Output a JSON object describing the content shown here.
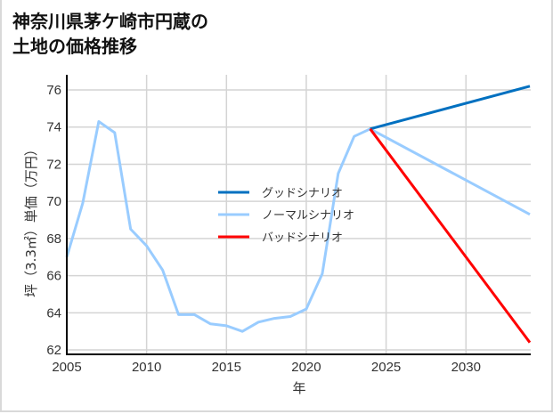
{
  "title_lines": [
    "神奈川県茅ケ崎市円蔵の",
    "土地の価格推移"
  ],
  "chart_data": {
    "type": "line",
    "title": "神奈川県茅ケ崎市円蔵の土地の価格推移",
    "xlabel": "年",
    "ylabel": "坪（3.3㎡）単価（万円）",
    "xlim": [
      2005,
      2034
    ],
    "ylim": [
      61.7,
      76.8
    ],
    "x_ticks": [
      2005,
      2010,
      2015,
      2020,
      2025,
      2030
    ],
    "y_ticks": [
      62,
      64,
      66,
      68,
      70,
      72,
      74,
      76
    ],
    "grid": true,
    "legend_position": "center",
    "series": [
      {
        "name": "ノーマルシナリオ",
        "color": "#99ccff",
        "x": [
          2005,
          2006,
          2007,
          2008,
          2009,
          2010,
          2011,
          2012,
          2013,
          2014,
          2015,
          2016,
          2017,
          2018,
          2019,
          2020,
          2021,
          2022,
          2023,
          2024,
          2034
        ],
        "values": [
          67.0,
          69.9,
          74.3,
          73.7,
          68.5,
          67.6,
          66.3,
          63.9,
          63.9,
          63.4,
          63.3,
          63.0,
          63.5,
          63.7,
          63.8,
          64.2,
          66.1,
          71.5,
          73.5,
          73.9,
          69.3
        ]
      },
      {
        "name": "グッドシナリオ",
        "color": "#0070c0",
        "x": [
          2024,
          2034
        ],
        "values": [
          73.9,
          76.2
        ]
      },
      {
        "name": "バッドシナリオ",
        "color": "#ff0000",
        "x": [
          2024,
          2034
        ],
        "values": [
          73.9,
          62.4
        ]
      }
    ],
    "legend": [
      {
        "label": "グッドシナリオ",
        "color": "#0070c0"
      },
      {
        "label": "ノーマルシナリオ",
        "color": "#99ccff"
      },
      {
        "label": "バッドシナリオ",
        "color": "#ff0000"
      }
    ]
  },
  "axis": {
    "xlabel": "年",
    "ylabel": "坪（3.3㎡）単価（万円）"
  }
}
